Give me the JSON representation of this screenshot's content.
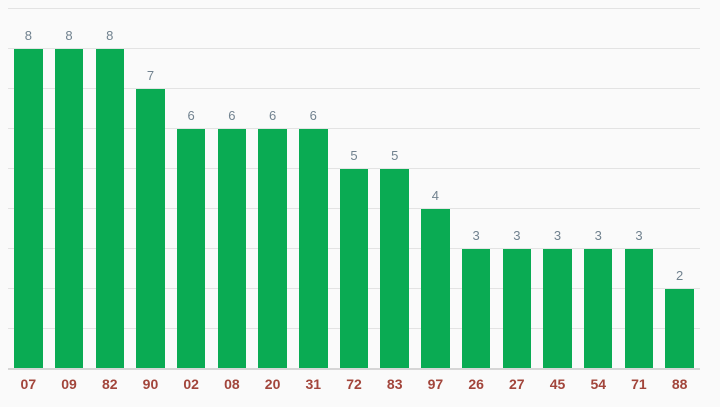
{
  "chart_data": {
    "type": "bar",
    "title": "",
    "xlabel": "",
    "ylabel": "",
    "categories": [
      "07",
      "09",
      "82",
      "90",
      "02",
      "08",
      "20",
      "31",
      "72",
      "83",
      "97",
      "26",
      "27",
      "45",
      "54",
      "71",
      "88"
    ],
    "values": [
      8,
      8,
      8,
      7,
      6,
      6,
      6,
      6,
      5,
      5,
      4,
      3,
      3,
      3,
      3,
      3,
      2
    ],
    "annotations": [
      "8",
      "8",
      "8",
      "7",
      "6",
      "6",
      "6",
      "6",
      "5",
      "5",
      "4",
      "3",
      "3",
      "3",
      "3",
      "3",
      "2"
    ],
    "ylim": [
      0,
      9
    ],
    "gridline_step": 1,
    "grid": true,
    "legend": "none",
    "colors": {
      "bar": "#0aab53",
      "annotation": "#71828f",
      "category_label": "#a2453b",
      "gridline": "#e3e3e3",
      "baseline": "#d6d6d6",
      "background": "#fafafa"
    }
  }
}
